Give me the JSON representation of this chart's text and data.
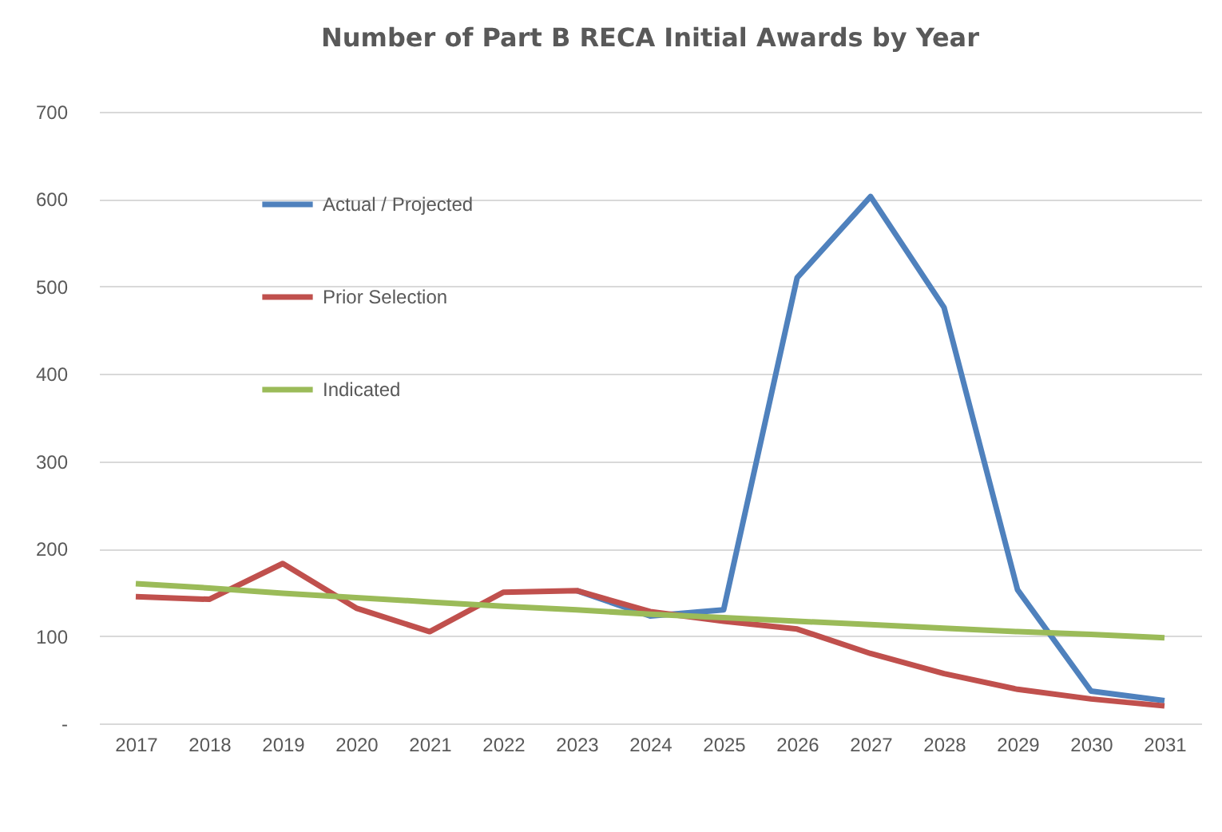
{
  "chart_data": {
    "type": "line",
    "title": "Number of Part B RECA Initial Awards by Year",
    "categories": [
      "2017",
      "2018",
      "2019",
      "2020",
      "2021",
      "2022",
      "2023",
      "2024",
      "2025",
      "2026",
      "2027",
      "2028",
      "2029",
      "2030",
      "2031"
    ],
    "series": [
      {
        "name": "Actual / Projected",
        "color": "#4f81bd",
        "values": [
          null,
          null,
          null,
          null,
          null,
          null,
          152,
          123,
          130,
          510,
          603,
          476,
          153,
          37,
          26
        ]
      },
      {
        "name": "Prior Selection",
        "color": "#c0504d",
        "values": [
          145,
          142,
          183,
          132,
          105,
          150,
          152,
          128,
          117,
          108,
          80,
          57,
          39,
          28,
          20
        ]
      },
      {
        "name": "Indicated",
        "color": "#9bbb59",
        "values": [
          160,
          155,
          149,
          144,
          139,
          134,
          130,
          125,
          121,
          117,
          113,
          109,
          105,
          102,
          98
        ]
      }
    ],
    "ylim": [
      0,
      700
    ],
    "yticks": [
      {
        "value": 0,
        "label": "-"
      },
      100,
      200,
      300,
      400,
      500,
      600,
      700
    ],
    "grid": "y",
    "legend": "top left",
    "marker": "none",
    "line_style": "solid"
  }
}
